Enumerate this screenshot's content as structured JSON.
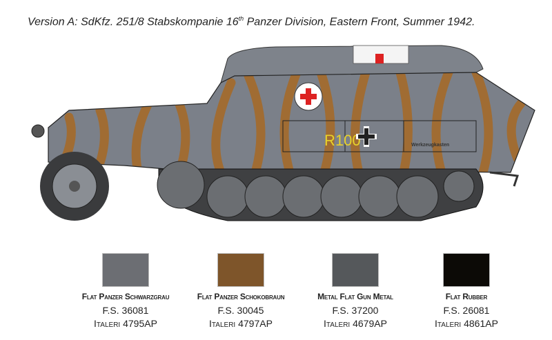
{
  "title": {
    "prefix": "Version A: SdKfz. 251/8 Stabskompanie 16",
    "sup": "th",
    "suffix": " Panzer Division, Eastern Front, Summer 1942."
  },
  "vehicle": {
    "marking": "R100",
    "toolbox_label": "Werkzeugkasten",
    "base_color": "#7b8089",
    "camo_color": "#a06c33"
  },
  "colors": [
    {
      "name": "Flat Panzer Schwarzgrau",
      "fs": "F.S. 36081",
      "brand": "Italeri",
      "code": "4795AP",
      "hex": "#6c6e73"
    },
    {
      "name": "Flat Panzer Schokobraun",
      "fs": "F.S. 30045",
      "brand": "Italeri",
      "code": "4797AP",
      "hex": "#7e552a"
    },
    {
      "name": "Metal Flat  Gun Metal",
      "fs": "F.S. 37200",
      "brand": "Italeri",
      "code": "4679AP",
      "hex": "#55585b"
    },
    {
      "name": "Flat Rubber",
      "fs": "F.S. 26081",
      "brand": "Italeri",
      "code": "4861AP",
      "hex": "#0c0a06"
    }
  ]
}
